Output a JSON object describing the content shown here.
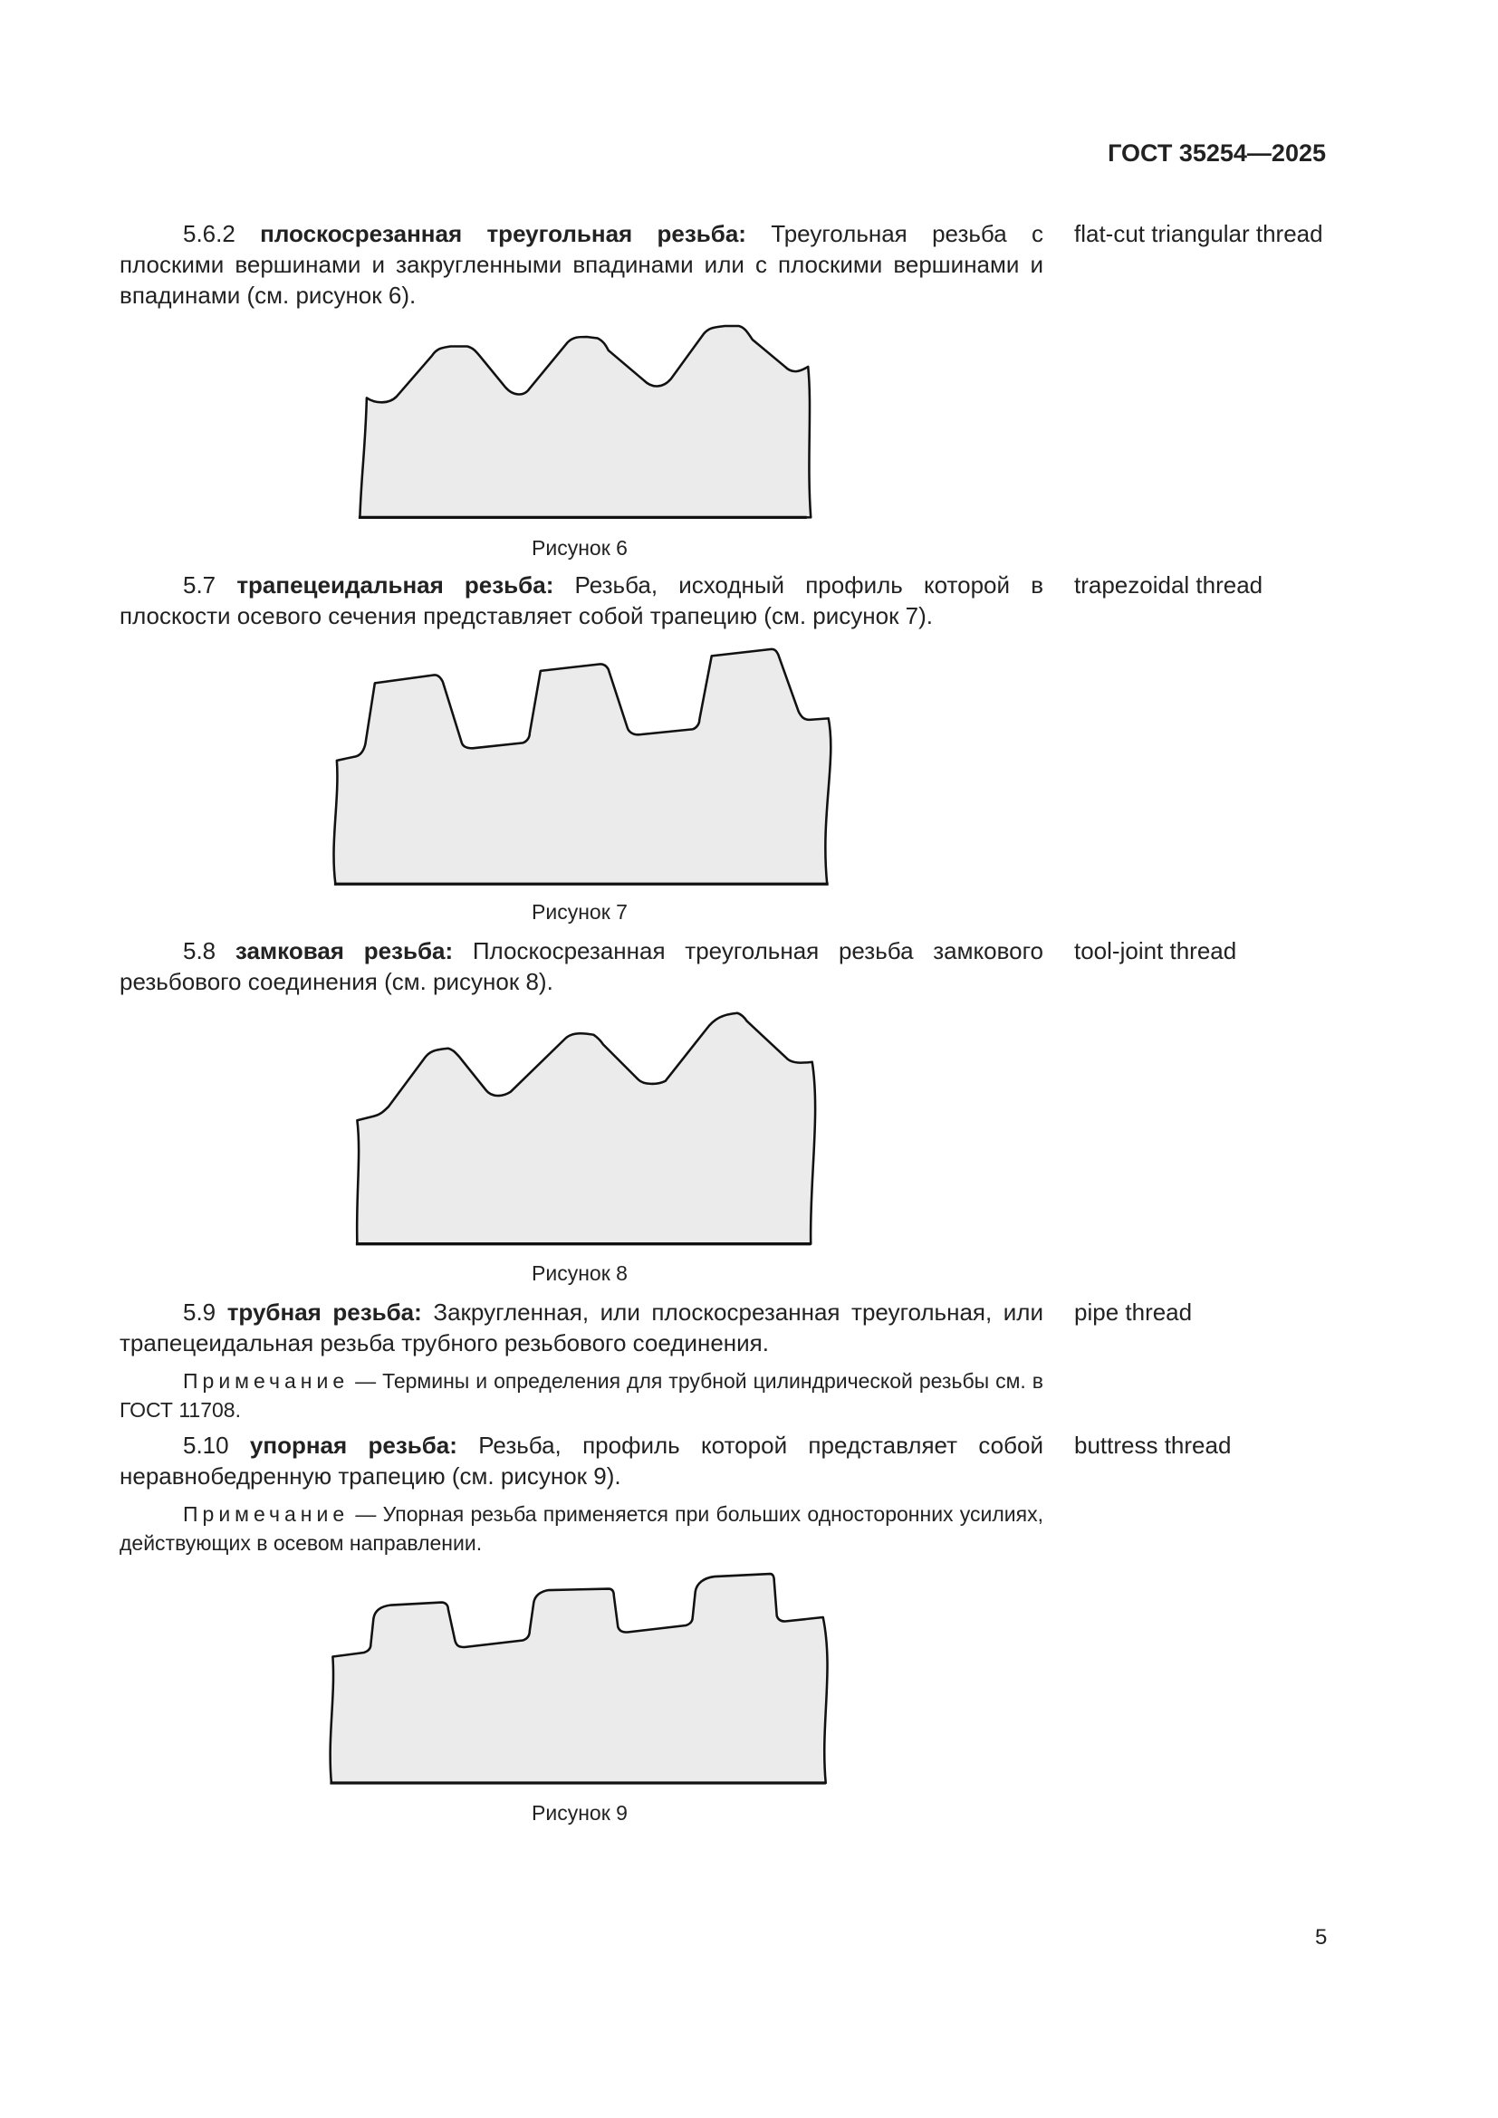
{
  "header": {
    "doc_code": "ГОСТ 35254—2025"
  },
  "sections": [
    {
      "number": "5.6.2",
      "term": "плоскосрезанная треугольная резьба:",
      "text": "Треугольная резьба с плоскими вершинами и закругленными впадинами или с плоскими вершинами и впадинами (см. рисунок 6).",
      "english": "flat-cut triangular thread",
      "figure": "Рисунок 6"
    },
    {
      "number": "5.7",
      "term": "трапецеидальная резьба:",
      "text": "Резьба, исходный профиль которой в плоскости осевого сечения представляет собой трапецию (см. рисунок 7).",
      "english": "trapezoidal thread",
      "figure": "Рисунок 7"
    },
    {
      "number": "5.8",
      "term": "замковая резьба:",
      "text": "Плоскосрезанная треугольная резьба замкового резьбового соединения (см. рисунок 8).",
      "english": "tool-joint thread",
      "figure": "Рисунок 8"
    },
    {
      "number": "5.9",
      "term": "трубная резьба:",
      "text": "Закругленная, или плоскосрезанная треугольная, или трапецеидальная резьба трубного резьбового соединения.",
      "english": "pipe thread",
      "note_label": "Примечание",
      "note_text": "— Термины и определения для трубной цилиндрической резьбы см. в ГОСТ 11708."
    },
    {
      "number": "5.10",
      "term": "упорная резьба:",
      "text": "Резьба, профиль которой представляет собой неравнобедренную трапецию (см. рисунок 9).",
      "english": "buttress thread",
      "note_label": "Примечание",
      "note_text": "— Упорная резьба применяется при больших односторонних усилиях, действующих в осевом направлении.",
      "figure": "Рисунок 9"
    }
  ],
  "colors": {
    "figure_fill": "#ebebeb",
    "outline": "#111111"
  },
  "page_number": "5"
}
